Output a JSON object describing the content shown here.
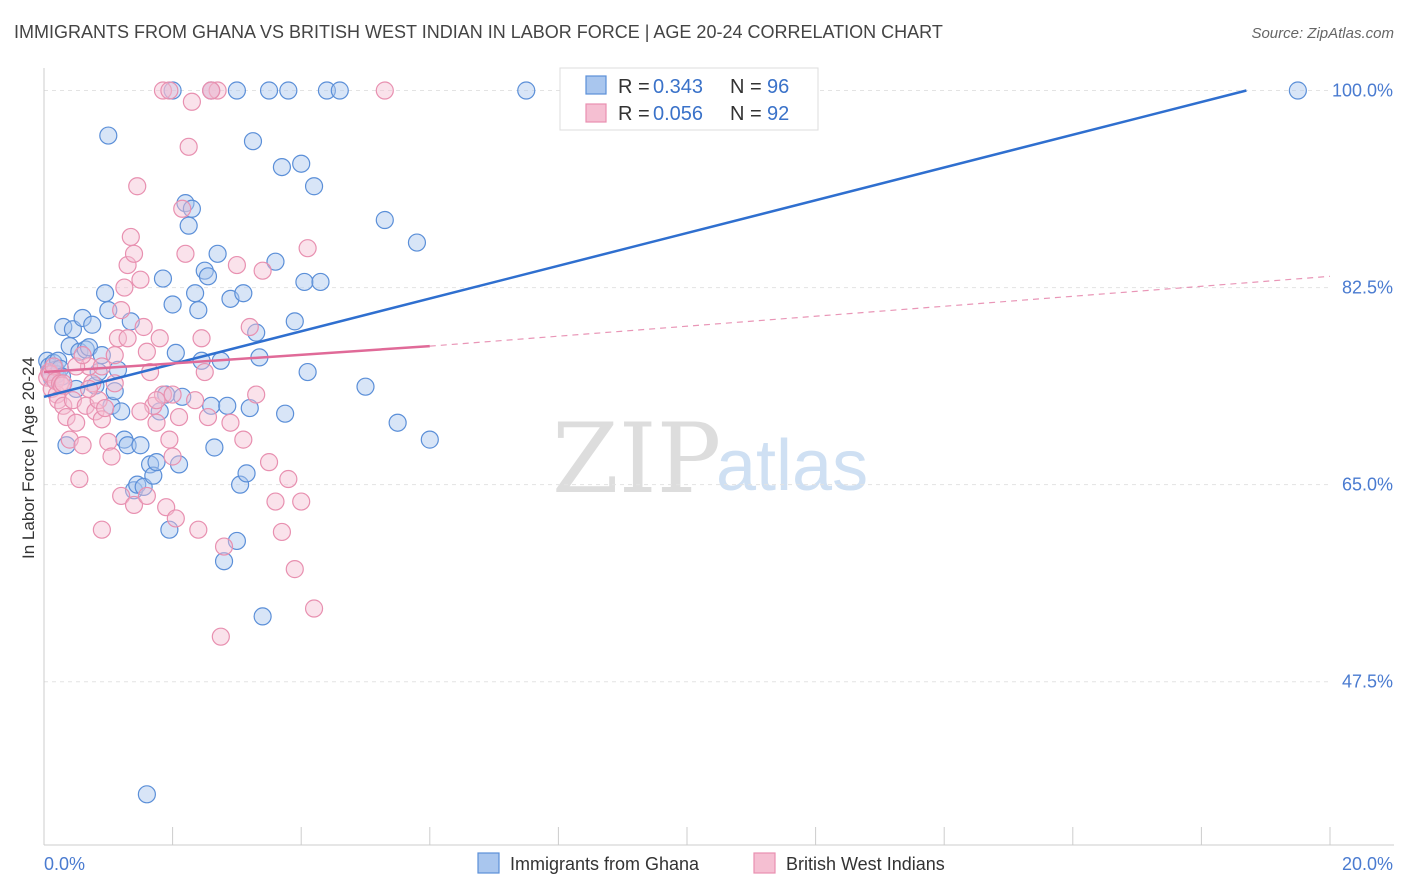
{
  "chart_data": {
    "type": "scatter",
    "title": "IMMIGRANTS FROM GHANA VS BRITISH WEST INDIAN IN LABOR FORCE | AGE 20-24 CORRELATION CHART",
    "source": "Source: ZipAtlas.com",
    "ylabel": "In Labor Force | Age 20-24",
    "xlim": [
      0,
      20
    ],
    "ylim": [
      33,
      102
    ],
    "x_tick_labels": [
      "0.0%",
      "20.0%"
    ],
    "y_ticks": [
      {
        "value": 100,
        "label": "100.0%"
      },
      {
        "value": 82.5,
        "label": "82.5%"
      },
      {
        "value": 65,
        "label": "65.0%"
      },
      {
        "value": 47.5,
        "label": "47.5%"
      }
    ],
    "grid": true,
    "watermark": {
      "zip": "ZIP",
      "atlas": "atlas"
    },
    "legend": {
      "placement": "top-center",
      "rows": [
        {
          "r_label": "R =",
          "r_value": "0.343",
          "n_label": "N =",
          "n_value": "96"
        },
        {
          "r_label": "R =",
          "r_value": "0.056",
          "n_label": "N =",
          "n_value": "92"
        }
      ]
    },
    "series": [
      {
        "name": "Immigrants from Ghana",
        "color": "#5b8fd8",
        "fill": "#a9c6ee",
        "trend": {
          "x": [
            0,
            18.7
          ],
          "y": [
            72.8,
            100
          ],
          "dashed_to": null
        },
        "points": [
          [
            0.05,
            76
          ],
          [
            0.08,
            75.5
          ],
          [
            0.1,
            75
          ],
          [
            0.12,
            74.5
          ],
          [
            0.15,
            75.8
          ],
          [
            0.18,
            75.2
          ],
          [
            0.2,
            74.8
          ],
          [
            0.22,
            76
          ],
          [
            0.25,
            75.3
          ],
          [
            0.28,
            74.6
          ],
          [
            0.3,
            79
          ],
          [
            0.35,
            68.5
          ],
          [
            0.4,
            77.3
          ],
          [
            0.45,
            78.8
          ],
          [
            0.5,
            73.5
          ],
          [
            0.55,
            76.8
          ],
          [
            0.6,
            79.8
          ],
          [
            0.65,
            77
          ],
          [
            0.7,
            77.2
          ],
          [
            0.75,
            79.2
          ],
          [
            0.8,
            73.8
          ],
          [
            0.85,
            75
          ],
          [
            0.9,
            76.5
          ],
          [
            0.95,
            82
          ],
          [
            1.0,
            80.5
          ],
          [
            1.05,
            72
          ],
          [
            1.1,
            73.3
          ],
          [
            1.15,
            75.2
          ],
          [
            1.2,
            71.5
          ],
          [
            1.25,
            69
          ],
          [
            1.3,
            68.5
          ],
          [
            1.35,
            79.5
          ],
          [
            1.4,
            64.5
          ],
          [
            1.45,
            65
          ],
          [
            1.5,
            68.5
          ],
          [
            1.55,
            64.8
          ],
          [
            1.6,
            37.5
          ],
          [
            1.65,
            66.8
          ],
          [
            1.7,
            65.8
          ],
          [
            1.75,
            67
          ],
          [
            1.8,
            71.5
          ],
          [
            1.85,
            83.3
          ],
          [
            1.9,
            73
          ],
          [
            1.95,
            61
          ],
          [
            2.0,
            81
          ],
          [
            2.05,
            76.7
          ],
          [
            2.1,
            66.8
          ],
          [
            2.15,
            72.8
          ],
          [
            2.2,
            90
          ],
          [
            2.25,
            88
          ],
          [
            2.3,
            89.5
          ],
          [
            2.35,
            82
          ],
          [
            2.4,
            80.5
          ],
          [
            2.45,
            76
          ],
          [
            2.5,
            84
          ],
          [
            2.55,
            83.5
          ],
          [
            2.6,
            72
          ],
          [
            2.65,
            68.3
          ],
          [
            2.7,
            85.5
          ],
          [
            2.75,
            76
          ],
          [
            2.8,
            58.2
          ],
          [
            2.85,
            72
          ],
          [
            2.9,
            81.5
          ],
          [
            3.0,
            60
          ],
          [
            3.05,
            65
          ],
          [
            3.1,
            82
          ],
          [
            3.15,
            66
          ],
          [
            3.2,
            71.8
          ],
          [
            3.25,
            95.5
          ],
          [
            3.3,
            78.5
          ],
          [
            3.35,
            76.3
          ],
          [
            3.4,
            53.3
          ],
          [
            3.5,
            100
          ],
          [
            3.6,
            84.8
          ],
          [
            3.7,
            93.2
          ],
          [
            3.75,
            71.3
          ],
          [
            3.8,
            100
          ],
          [
            3.9,
            79.5
          ],
          [
            4.0,
            93.5
          ],
          [
            4.05,
            83
          ],
          [
            4.1,
            75
          ],
          [
            4.2,
            91.5
          ],
          [
            4.3,
            83
          ],
          [
            4.4,
            100
          ],
          [
            2.0,
            100
          ],
          [
            2.6,
            100
          ],
          [
            3.0,
            100
          ],
          [
            4.6,
            100
          ],
          [
            5.0,
            73.7
          ],
          [
            5.3,
            88.5
          ],
          [
            5.5,
            70.5
          ],
          [
            5.8,
            86.5
          ],
          [
            6.0,
            69
          ],
          [
            7.5,
            100
          ],
          [
            19.5,
            100
          ],
          [
            1.0,
            96
          ]
        ]
      },
      {
        "name": "British West Indians",
        "color": "#e890b0",
        "fill": "#f5bfd2",
        "trend": {
          "x": [
            0,
            6.0
          ],
          "y": [
            75,
            77.3
          ],
          "dashed_to": [
            20,
            83.5
          ]
        },
        "points": [
          [
            0.05,
            74.5
          ],
          [
            0.08,
            75
          ],
          [
            0.1,
            74.8
          ],
          [
            0.12,
            73.5
          ],
          [
            0.15,
            75.5
          ],
          [
            0.18,
            74.2
          ],
          [
            0.2,
            73
          ],
          [
            0.22,
            72.5
          ],
          [
            0.25,
            74
          ],
          [
            0.28,
            73.8
          ],
          [
            0.3,
            72
          ],
          [
            0.35,
            71
          ],
          [
            0.4,
            69
          ],
          [
            0.45,
            72.5
          ],
          [
            0.5,
            70.5
          ],
          [
            0.55,
            65.5
          ],
          [
            0.6,
            68.5
          ],
          [
            0.65,
            72
          ],
          [
            0.7,
            75.5
          ],
          [
            0.75,
            74
          ],
          [
            0.8,
            71.5
          ],
          [
            0.85,
            72.5
          ],
          [
            0.9,
            70.8
          ],
          [
            0.95,
            71.8
          ],
          [
            1.0,
            68.8
          ],
          [
            1.05,
            67.5
          ],
          [
            1.1,
            76.5
          ],
          [
            1.15,
            78
          ],
          [
            1.2,
            80.5
          ],
          [
            1.25,
            82.5
          ],
          [
            1.3,
            84.5
          ],
          [
            1.35,
            87
          ],
          [
            1.4,
            85.5
          ],
          [
            1.45,
            91.5
          ],
          [
            1.5,
            83.2
          ],
          [
            1.55,
            79
          ],
          [
            1.6,
            76.8
          ],
          [
            1.65,
            75
          ],
          [
            1.7,
            72
          ],
          [
            1.75,
            70.5
          ],
          [
            1.8,
            78
          ],
          [
            1.85,
            73
          ],
          [
            1.9,
            63
          ],
          [
            1.95,
            69
          ],
          [
            2.0,
            67.5
          ],
          [
            2.05,
            62
          ],
          [
            2.1,
            71
          ],
          [
            2.15,
            89.5
          ],
          [
            2.2,
            85.5
          ],
          [
            2.25,
            95
          ],
          [
            2.3,
            99
          ],
          [
            2.35,
            72.5
          ],
          [
            2.4,
            61
          ],
          [
            2.45,
            78
          ],
          [
            2.5,
            75
          ],
          [
            2.55,
            71
          ],
          [
            2.6,
            100
          ],
          [
            2.7,
            100
          ],
          [
            2.75,
            51.5
          ],
          [
            2.8,
            59.5
          ],
          [
            2.9,
            70.5
          ],
          [
            3.0,
            84.5
          ],
          [
            3.1,
            69
          ],
          [
            3.2,
            79
          ],
          [
            3.3,
            73
          ],
          [
            3.4,
            84
          ],
          [
            3.5,
            67
          ],
          [
            3.6,
            63.5
          ],
          [
            3.7,
            60.8
          ],
          [
            3.8,
            65.5
          ],
          [
            3.9,
            57.5
          ],
          [
            4.0,
            63.5
          ],
          [
            4.1,
            86
          ],
          [
            4.2,
            54
          ],
          [
            5.3,
            100
          ],
          [
            1.85,
            100
          ],
          [
            1.95,
            100
          ],
          [
            2.6,
            100
          ],
          [
            0.9,
            61
          ],
          [
            1.2,
            64
          ],
          [
            1.4,
            63.2
          ],
          [
            1.6,
            64
          ],
          [
            1.75,
            72.5
          ],
          [
            2.0,
            73
          ],
          [
            0.5,
            75.5
          ],
          [
            0.7,
            73.5
          ],
          [
            0.9,
            75.5
          ],
          [
            1.1,
            74
          ],
          [
            1.3,
            78
          ],
          [
            1.5,
            71.5
          ],
          [
            0.3,
            74
          ],
          [
            0.6,
            76.5
          ]
        ]
      }
    ]
  }
}
